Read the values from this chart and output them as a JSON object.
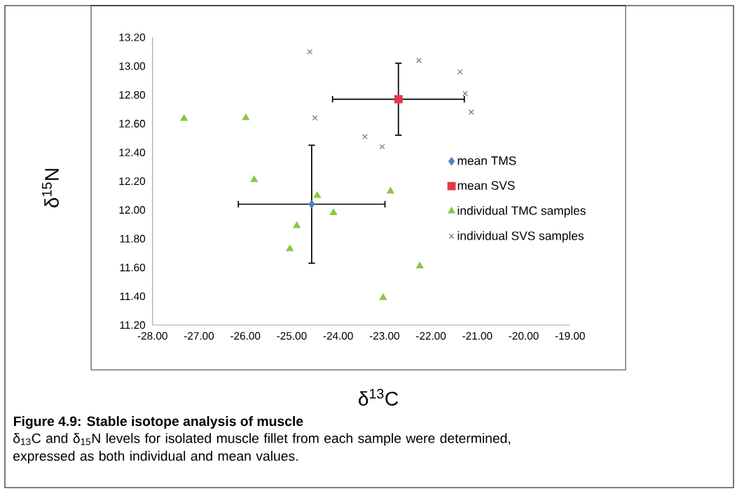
{
  "chart_data": {
    "type": "scatter",
    "title": "Figure 4.9: Stable isotope analysis of muscle",
    "xlabel": "δ$^{13}$C",
    "ylabel": "δ$^{15}$N",
    "annotations": [
      "δ$_{13}$C and δ$_{15}$N levels for isolated muscle fillet from each sample were determined, expressed as both individual and mean values."
    ],
    "xlim": [
      -28,
      -19
    ],
    "xticks": [
      {
        "value": -28,
        "label": "-28.00"
      },
      {
        "value": -27,
        "label": "-27.00"
      },
      {
        "value": -26,
        "label": "-26.00"
      },
      {
        "value": -25,
        "label": "-25.00"
      },
      {
        "value": -24,
        "label": "-24.00"
      },
      {
        "value": -23,
        "label": "-23.00"
      },
      {
        "value": -22,
        "label": "-22.00"
      },
      {
        "value": -21,
        "label": "-21.00"
      },
      {
        "value": -20,
        "label": "-20.00"
      },
      {
        "value": -19,
        "label": "-19.00"
      }
    ],
    "ylim": [
      11.2,
      13.2
    ],
    "yticks": [
      {
        "value": 11.2,
        "label": "11.20"
      },
      {
        "value": 11.4,
        "label": "11.40"
      },
      {
        "value": 11.6,
        "label": "11.60"
      },
      {
        "value": 11.8,
        "label": "11.80"
      },
      {
        "value": 12.0,
        "label": "12.00"
      },
      {
        "value": 12.2,
        "label": "12.20"
      },
      {
        "value": 12.4,
        "label": "12.40"
      },
      {
        "value": 12.6,
        "label": "12.60"
      },
      {
        "value": 12.8,
        "label": "12.80"
      },
      {
        "value": 13.0,
        "label": "13.00"
      },
      {
        "value": 13.2,
        "label": "13.20"
      }
    ],
    "legend": "right",
    "series": [
      {
        "name": "mean TMS",
        "color": "#4f81bd",
        "marker": "diamond",
        "x": [
          -24.57
        ],
        "values": [
          12.04
        ],
        "xerrors": [
          1.58
        ],
        "errors": [
          0.41
        ]
      },
      {
        "name": "mean SVS",
        "color": "#e0394c",
        "marker": "square",
        "x": [
          -22.7
        ],
        "values": [
          12.77
        ],
        "xerrors": [
          1.42
        ],
        "errors": [
          0.25
        ]
      },
      {
        "name": "individual TMC samples",
        "color": "#8cc63f",
        "marker": "triangle",
        "x": [
          -27.32,
          -25.99,
          -25.81,
          -24.45,
          -24.1,
          -24.89,
          -25.04,
          -22.87,
          -22.24,
          -23.03
        ],
        "values": [
          12.635,
          12.64,
          12.21,
          12.1,
          11.98,
          11.89,
          11.73,
          12.13,
          11.61,
          11.39
        ]
      },
      {
        "name": "individual SVS samples",
        "color": "#8064a2",
        "marker": "cross",
        "x": [
          -24.61,
          -24.5,
          -23.42,
          -22.26,
          -21.37,
          -21.26,
          -21.13,
          -23.05
        ],
        "values": [
          13.1,
          12.64,
          12.51,
          13.04,
          12.96,
          12.81,
          12.68,
          12.44
        ]
      }
    ]
  }
}
